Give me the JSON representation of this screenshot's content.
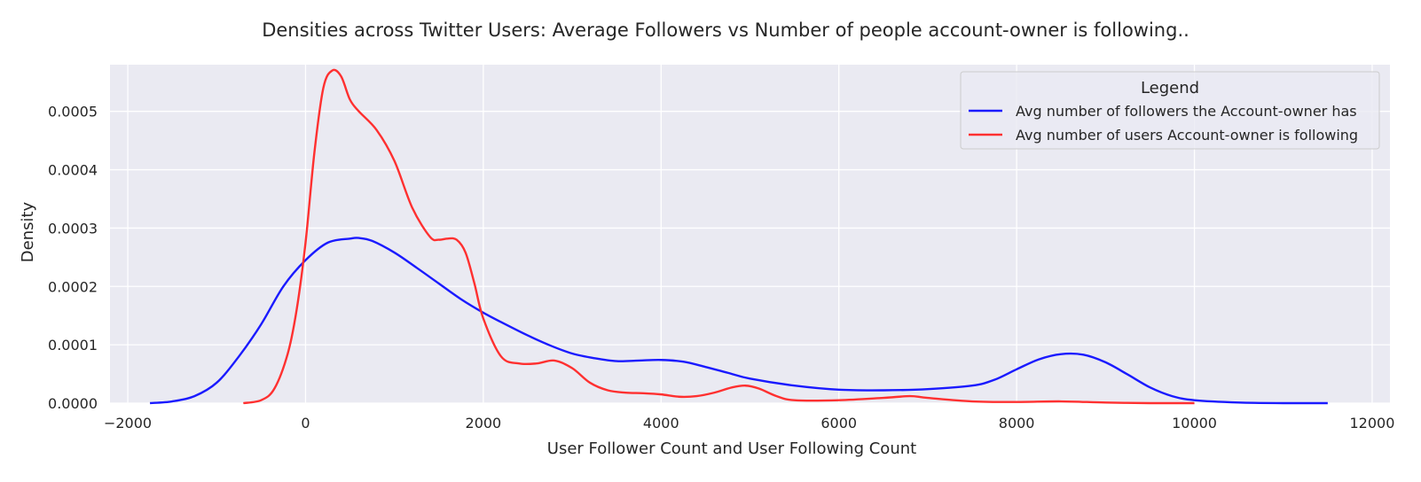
{
  "chart_data": {
    "type": "line",
    "kind": "kde",
    "title": "Densities across Twitter Users: Average Followers vs Number of people account-owner is following..",
    "xlabel": "User Follower Count and User Following Count",
    "ylabel": "Density",
    "xlim": [
      -2200,
      12200
    ],
    "ylim": [
      0,
      0.00058
    ],
    "xticks": [
      -2000,
      0,
      2000,
      4000,
      6000,
      8000,
      10000,
      12000
    ],
    "xtick_labels": [
      "−2000",
      "0",
      "2000",
      "4000",
      "6000",
      "8000",
      "10000",
      "12000"
    ],
    "yticks": [
      0,
      0.0001,
      0.0002,
      0.0003,
      0.0004,
      0.0005
    ],
    "ytick_labels": [
      "0.0000",
      "0.0001",
      "0.0002",
      "0.0003",
      "0.0004",
      "0.0005"
    ],
    "grid": true,
    "background": "#eaeaf2",
    "legend": {
      "title": "Legend",
      "placement": "top-right"
    },
    "series": [
      {
        "name": "Avg number of followers the Account-owner has",
        "color": "#1a1aff",
        "x": [
          -1750,
          -1500,
          -1250,
          -1000,
          -750,
          -500,
          -250,
          0,
          250,
          500,
          600,
          750,
          1000,
          1250,
          1500,
          1750,
          2000,
          2250,
          2500,
          2750,
          3000,
          3250,
          3500,
          3750,
          4000,
          4250,
          4500,
          4750,
          5000,
          5500,
          6000,
          6500,
          7000,
          7500,
          7750,
          8000,
          8250,
          8500,
          8750,
          9000,
          9250,
          9500,
          9750,
          10000,
          10500,
          11000,
          11500
        ],
        "y": [
          0.0,
          3e-06,
          1.2e-05,
          3.5e-05,
          8e-05,
          0.000135,
          0.0002,
          0.000245,
          0.000275,
          0.000282,
          0.000283,
          0.000278,
          0.000258,
          0.000232,
          0.000205,
          0.000178,
          0.000155,
          0.000135,
          0.000116,
          9.9e-05,
          8.5e-05,
          7.7e-05,
          7.2e-05,
          7.3e-05,
          7.4e-05,
          7.1e-05,
          6.2e-05,
          5.2e-05,
          4.2e-05,
          3e-05,
          2.3e-05,
          2.2e-05,
          2.4e-05,
          3e-05,
          4e-05,
          5.8e-05,
          7.5e-05,
          8.4e-05,
          8.3e-05,
          7e-05,
          4.9e-05,
          2.7e-05,
          1.2e-05,
          5e-06,
          1e-06,
          0.0,
          0.0
        ]
      },
      {
        "name": "Avg number of users Account-owner is following",
        "color": "#ff3030",
        "x": [
          -700,
          -500,
          -350,
          -200,
          -100,
          0,
          100,
          200,
          300,
          400,
          500,
          600,
          800,
          1000,
          1200,
          1400,
          1500,
          1600,
          1700,
          1800,
          1900,
          2000,
          2200,
          2400,
          2600,
          2800,
          3000,
          3200,
          3400,
          3600,
          3800,
          4000,
          4200,
          4400,
          4600,
          4800,
          4950,
          5100,
          5300,
          5500,
          6000,
          6500,
          6800,
          7000,
          7500,
          8000,
          8500,
          9000,
          9500,
          10000
        ],
        "y": [
          0.0,
          5e-06,
          2.5e-05,
          8.5e-05,
          0.00016,
          0.000275,
          0.00043,
          0.00054,
          0.00057,
          0.00056,
          0.00052,
          0.0005,
          0.000468,
          0.000415,
          0.000335,
          0.000285,
          0.00028,
          0.000282,
          0.00028,
          0.000258,
          0.000205,
          0.000145,
          8e-05,
          6.8e-05,
          6.8e-05,
          7.3e-05,
          6e-05,
          3.5e-05,
          2.2e-05,
          1.8e-05,
          1.7e-05,
          1.5e-05,
          1.1e-05,
          1.2e-05,
          1.8e-05,
          2.7e-05,
          3e-05,
          2.5e-05,
          1.2e-05,
          5e-06,
          5e-06,
          9e-06,
          1.2e-05,
          9e-06,
          3e-06,
          2e-06,
          3e-06,
          1e-06,
          0.0,
          0.0
        ]
      }
    ]
  }
}
